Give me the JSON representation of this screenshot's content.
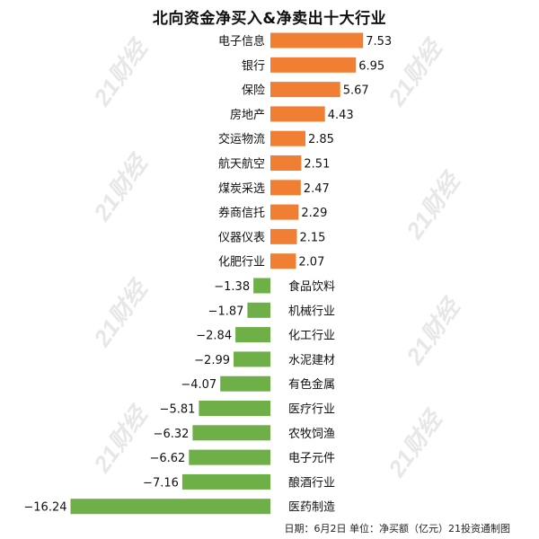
{
  "title": "北向资金净买入&净卖出十大行业",
  "footnote": "日期：6月2日 单位：净买额（亿元）21投资通制图",
  "watermark_text": "21财经",
  "colors": {
    "positive": "#F07F33",
    "negative": "#6FAF47",
    "text": "#111111"
  },
  "chart_data": {
    "type": "bar",
    "orientation": "horizontal",
    "title": "北向资金净买入&净卖出十大行业",
    "categories": [
      "电子信息",
      "银行",
      "保险",
      "房地产",
      "交运物流",
      "航天航空",
      "煤炭采选",
      "券商信托",
      "仪器仪表",
      "化肥行业",
      "食品饮料",
      "机械行业",
      "化工行业",
      "水泥建材",
      "有色金属",
      "医疗行业",
      "农牧饲渔",
      "电子元件",
      "酿酒行业",
      "医药制造"
    ],
    "values": [
      7.53,
      6.95,
      5.67,
      4.43,
      2.85,
      2.51,
      2.47,
      2.29,
      2.15,
      2.07,
      -1.38,
      -1.87,
      -2.84,
      -2.99,
      -4.07,
      -5.81,
      -6.32,
      -6.62,
      -7.16,
      -16.24
    ],
    "value_labels": [
      "7.53",
      "6.95",
      "5.67",
      "4.43",
      "2.85",
      "2.51",
      "2.47",
      "2.29",
      "2.15",
      "2.07",
      "−1.38",
      "−1.87",
      "−2.84",
      "−2.99",
      "−4.07",
      "−5.81",
      "−6.32",
      "−6.62",
      "−7.16",
      "−16.24"
    ],
    "grid": false,
    "legend": "none"
  }
}
